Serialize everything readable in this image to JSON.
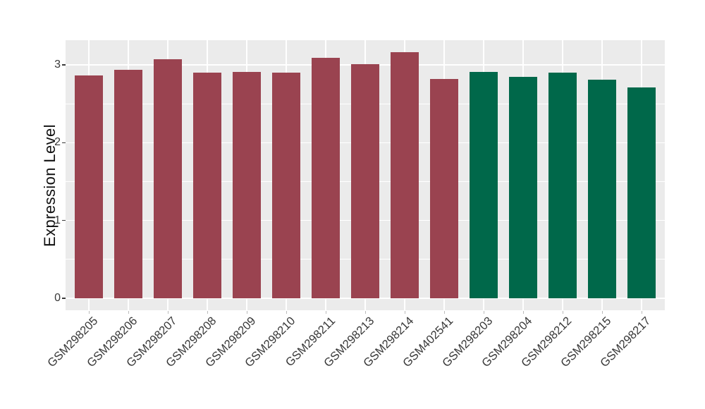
{
  "chart_data": {
    "type": "bar",
    "title": "",
    "xlabel": "",
    "ylabel": "Expression Level",
    "categories": [
      "GSM298205",
      "GSM298206",
      "GSM298207",
      "GSM298208",
      "GSM298209",
      "GSM298210",
      "GSM298211",
      "GSM298213",
      "GSM298214",
      "GSM402541",
      "GSM298203",
      "GSM298204",
      "GSM298212",
      "GSM298215",
      "GSM298217"
    ],
    "values": [
      2.86,
      2.94,
      3.07,
      2.9,
      2.91,
      2.9,
      3.09,
      3.01,
      3.16,
      2.82,
      2.91,
      2.85,
      2.9,
      2.81,
      2.71
    ],
    "groups": [
      "group1",
      "group1",
      "group1",
      "group1",
      "group1",
      "group1",
      "group1",
      "group1",
      "group1",
      "group1",
      "group2",
      "group2",
      "group2",
      "group2",
      "group2"
    ],
    "group_colors": {
      "group1": "#9A4350",
      "group2": "#00684A"
    },
    "y_ticks": [
      0,
      1,
      2,
      3
    ],
    "ylim": [
      -0.16,
      3.32
    ],
    "x_tick_label_angle": 45,
    "legend_position": "none",
    "grid": "major and minor horizontal + major vertical, white on gray panel",
    "panel_background": "#EBEBEB",
    "grid_color": "#FFFFFF",
    "axis_text_color": "#383838",
    "x_tick_mark_color": "#BBBBBB",
    "y_tick_mark_color": "#3A3A3A"
  }
}
